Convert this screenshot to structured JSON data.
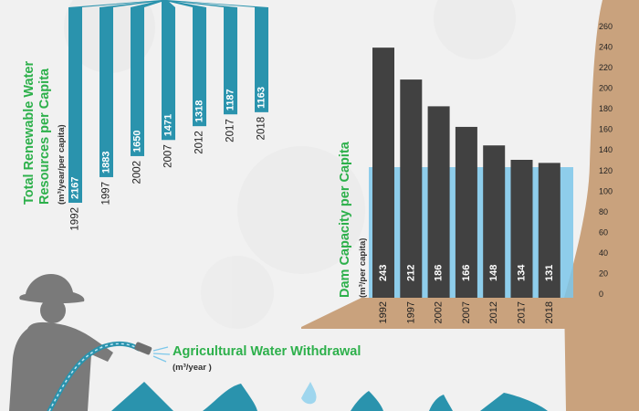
{
  "chart_data": [
    {
      "type": "bar",
      "title": "Total Renewable Water Resources per Capita",
      "unit": "(m³/year/per capita)",
      "categories": [
        "1992",
        "1997",
        "2002",
        "2007",
        "2012",
        "2017",
        "2018"
      ],
      "values": [
        2167,
        1883,
        1650,
        1471,
        1318,
        1187,
        1163
      ]
    },
    {
      "type": "bar",
      "title": "Dam Capacity per Capita",
      "unit": "(m³/per capita)",
      "categories": [
        "1992",
        "1997",
        "2002",
        "2007",
        "2012",
        "2017",
        "2018"
      ],
      "values": [
        243,
        212,
        186,
        166,
        148,
        134,
        131
      ],
      "yticks": [
        0,
        20,
        40,
        60,
        80,
        100,
        120,
        140,
        160,
        180,
        200,
        220,
        240,
        260
      ],
      "ylim": [
        0,
        260
      ]
    }
  ],
  "agri": {
    "title": "Agricultural Water Withdrawal",
    "unit": "(m³/year )"
  },
  "colors": {
    "teal": "#2a93ad",
    "green": "#2db04b",
    "dam_bar": "#414141",
    "water": "#7cc7ea",
    "soil": "#c9a27d",
    "background": "#f1f1f1"
  }
}
